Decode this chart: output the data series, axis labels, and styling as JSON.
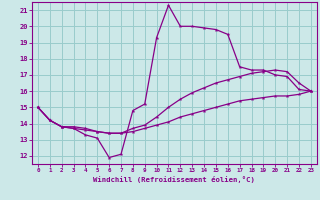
{
  "xlabel": "Windchill (Refroidissement éolien,°C)",
  "bg_color": "#cce8e8",
  "line_color": "#880088",
  "grid_color": "#99cccc",
  "spine_color": "#880088",
  "xlim": [
    -0.5,
    23.5
  ],
  "ylim": [
    11.5,
    21.5
  ],
  "yticks": [
    12,
    13,
    14,
    15,
    16,
    17,
    18,
    19,
    20,
    21
  ],
  "xticks": [
    0,
    1,
    2,
    3,
    4,
    5,
    6,
    7,
    8,
    9,
    10,
    11,
    12,
    13,
    14,
    15,
    16,
    17,
    18,
    19,
    20,
    21,
    22,
    23
  ],
  "series1_x": [
    0,
    1,
    2,
    3,
    4,
    5,
    6,
    7,
    8,
    9,
    10,
    11,
    12,
    13,
    14,
    15,
    16,
    17,
    18,
    19,
    20,
    21,
    22,
    23
  ],
  "series1_y": [
    15.0,
    14.2,
    13.8,
    13.7,
    13.3,
    13.1,
    11.9,
    12.1,
    14.8,
    15.2,
    19.3,
    21.3,
    20.0,
    20.0,
    19.9,
    19.8,
    19.5,
    17.5,
    17.3,
    17.3,
    17.0,
    16.9,
    16.1,
    16.0
  ],
  "series2_x": [
    0,
    1,
    2,
    3,
    4,
    5,
    6,
    7,
    8,
    9,
    10,
    11,
    12,
    13,
    14,
    15,
    16,
    17,
    18,
    19,
    20,
    21,
    22,
    23
  ],
  "series2_y": [
    15.0,
    14.2,
    13.8,
    13.8,
    13.7,
    13.5,
    13.4,
    13.4,
    13.7,
    13.9,
    14.4,
    15.0,
    15.5,
    15.9,
    16.2,
    16.5,
    16.7,
    16.9,
    17.1,
    17.2,
    17.3,
    17.2,
    16.5,
    16.0
  ],
  "series3_x": [
    0,
    1,
    2,
    3,
    4,
    5,
    6,
    7,
    8,
    9,
    10,
    11,
    12,
    13,
    14,
    15,
    16,
    17,
    18,
    19,
    20,
    21,
    22,
    23
  ],
  "series3_y": [
    15.0,
    14.2,
    13.8,
    13.7,
    13.6,
    13.5,
    13.4,
    13.4,
    13.5,
    13.7,
    13.9,
    14.1,
    14.4,
    14.6,
    14.8,
    15.0,
    15.2,
    15.4,
    15.5,
    15.6,
    15.7,
    15.7,
    15.8,
    16.0
  ]
}
